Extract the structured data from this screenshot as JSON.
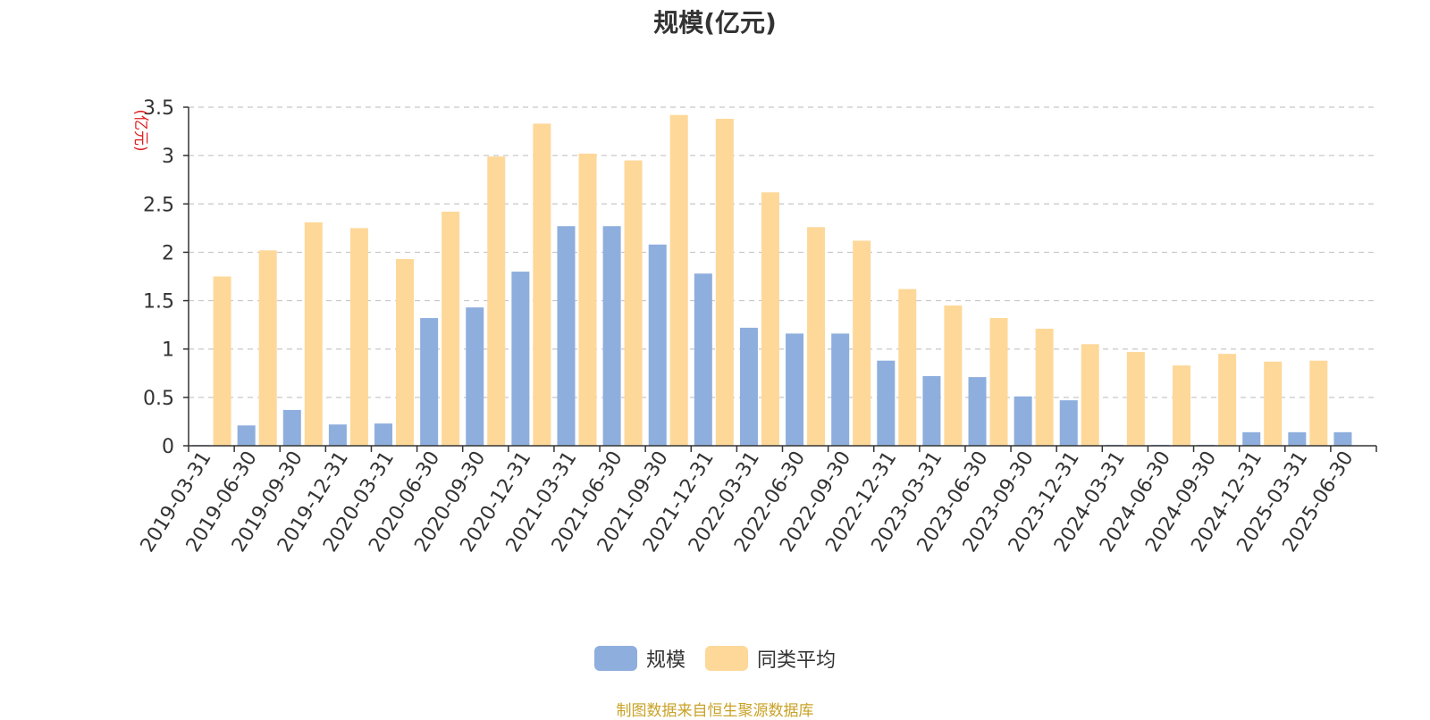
{
  "chart_data": {
    "type": "bar",
    "title": "规模(亿元)",
    "ylabel": "(亿元)",
    "xlabel": "",
    "ylim": [
      0,
      3.5
    ],
    "yticks": [
      "0",
      "0.5",
      "1",
      "1.5",
      "2",
      "2.5",
      "3",
      "3.5"
    ],
    "grid": true,
    "legend_position": "bottom",
    "categories": [
      "2019-03-31",
      "2019-06-30",
      "2019-09-30",
      "2019-12-31",
      "2020-03-31",
      "2020-06-30",
      "2020-09-30",
      "2020-12-31",
      "2021-03-31",
      "2021-06-30",
      "2021-09-30",
      "2021-12-31",
      "2022-03-31",
      "2022-06-30",
      "2022-09-30",
      "2022-12-31",
      "2023-03-31",
      "2023-06-30",
      "2023-09-30",
      "2023-12-31",
      "2024-03-31",
      "2024-06-30",
      "2024-09-30",
      "2024-12-31",
      "2025-03-31",
      "2025-06-30"
    ],
    "series": [
      {
        "name": "规模",
        "color": "#8eaedd",
        "values": [
          0,
          0.21,
          0.37,
          0.22,
          0.23,
          1.32,
          1.43,
          1.8,
          2.27,
          2.27,
          2.08,
          1.78,
          1.22,
          1.16,
          1.16,
          0.88,
          0.72,
          0.71,
          0.51,
          0.47,
          0.01,
          0.01,
          0.01,
          0.14,
          0.14,
          0.14
        ]
      },
      {
        "name": "同类平均",
        "color": "#fed899",
        "values": [
          1.75,
          2.02,
          2.31,
          2.25,
          1.93,
          2.42,
          2.99,
          3.33,
          3.02,
          2.95,
          3.42,
          3.38,
          2.62,
          2.26,
          2.12,
          1.62,
          1.45,
          1.32,
          1.21,
          1.05,
          0.97,
          0.83,
          0.95,
          0.87,
          0.88,
          null
        ]
      }
    ]
  },
  "source_note": "制图数据来自恒生聚源数据库"
}
